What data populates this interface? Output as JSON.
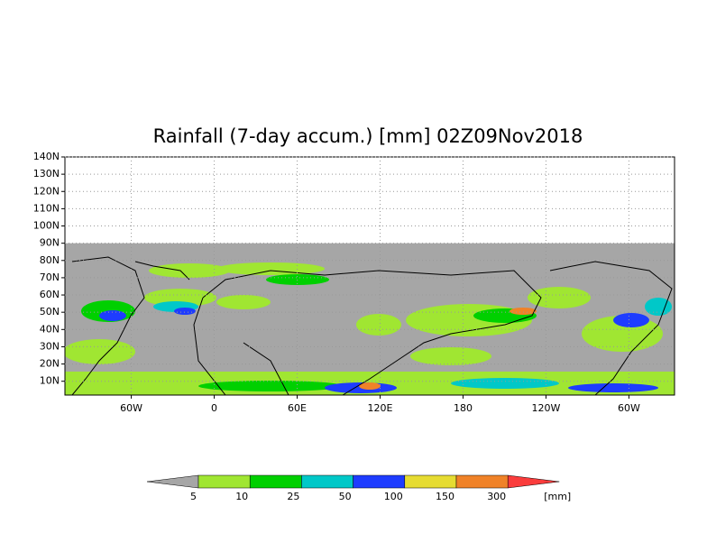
{
  "map": {
    "title": "Rainfall (7-day accum.) [mm] 02Z09Nov2018",
    "xlim": [
      -108,
      333
    ],
    "ylim": [
      2,
      140
    ],
    "data_top": 90,
    "xticks": [
      {
        "value": -60,
        "label": "60W"
      },
      0,
      {
        "value": 60,
        "label": "60E"
      },
      {
        "value": 120,
        "label": "120E"
      },
      180,
      {
        "value": 240,
        "label": "120W"
      },
      {
        "value": 300,
        "label": "60W"
      }
    ],
    "yticks": [
      {
        "value": 10,
        "label": "10N"
      },
      {
        "value": 20,
        "label": "20N"
      },
      {
        "value": 30,
        "label": "30N"
      },
      {
        "value": 40,
        "label": "40N"
      },
      {
        "value": 50,
        "label": "50N"
      },
      {
        "value": 60,
        "label": "60N"
      },
      {
        "value": 70,
        "label": "70N"
      },
      {
        "value": 80,
        "label": "80N"
      },
      {
        "value": 90,
        "label": "90N"
      },
      {
        "value": 100,
        "label": "100N"
      },
      {
        "value": 110,
        "label": "110N"
      },
      {
        "value": 120,
        "label": "120N"
      },
      {
        "value": 130,
        "label": "130N"
      },
      {
        "value": 140,
        "label": "140N"
      }
    ],
    "grid": true,
    "colorbar": {
      "levels": [
        5,
        10,
        25,
        50,
        100,
        150,
        300
      ],
      "colors": [
        "#a6a6a6",
        "#a0e632",
        "#00d000",
        "#00c8c8",
        "#1e3cff",
        "#e6dc32",
        "#f08228",
        "#fa3c3c"
      ],
      "unit": "[mm]"
    }
  }
}
